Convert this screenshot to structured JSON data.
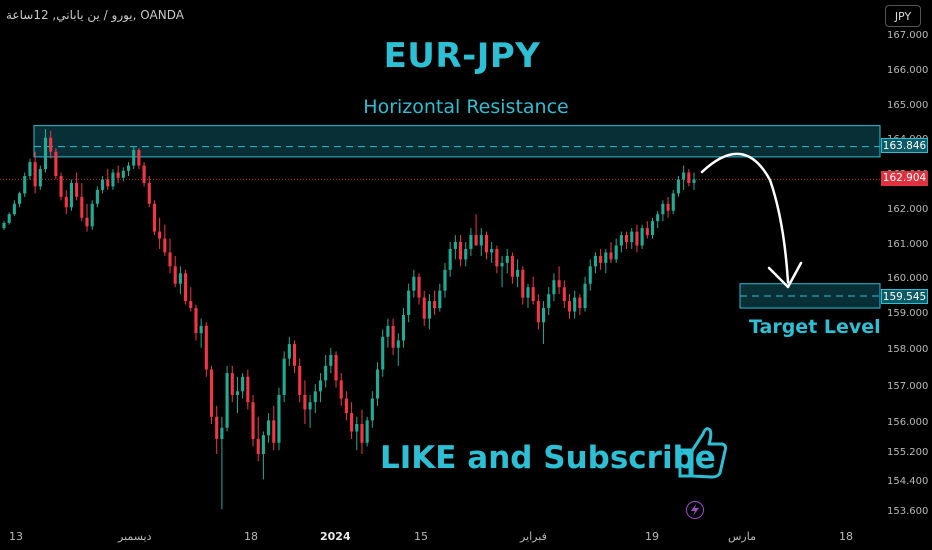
{
  "symbol_line": "يورو / ين ياباني, 12ساعة, OANDA",
  "title": "EUR-JPY",
  "subtitle": "Horizontal Resistance",
  "target_label": "Target Level",
  "cta": "LIKE and Subscribe",
  "currency_button": "JPY",
  "colors": {
    "accent": "#2dbfd4",
    "up": "#22ab94",
    "down": "#f23645",
    "current": "#e0313f"
  },
  "icons": [
    "thumbs-up-icon",
    "lightning-icon"
  ],
  "price_tags": {
    "resistance": "163.846",
    "current": "162.904",
    "target": "159.545"
  },
  "y_axis_labels": [
    "167.000",
    "166.000",
    "165.000",
    "164.000",
    "163.000",
    "162.000",
    "161.000",
    "160.000",
    "159.000",
    "158.000",
    "157.000",
    "156.000",
    "155.200",
    "154.400",
    "153.600"
  ],
  "x_axis_labels": [
    {
      "text": "13",
      "bold": false
    },
    {
      "text": "ديسمبر",
      "bold": false
    },
    {
      "text": "18",
      "bold": false
    },
    {
      "text": "2024",
      "bold": true
    },
    {
      "text": "15",
      "bold": false
    },
    {
      "text": "فبراير",
      "bold": false
    },
    {
      "text": "19",
      "bold": false
    },
    {
      "text": "مارس",
      "bold": false
    },
    {
      "text": "18",
      "bold": false
    }
  ],
  "chart_data": {
    "type": "candlestick",
    "resistance_zone": [
      163.55,
      164.45
    ],
    "resistance_line": 163.846,
    "current_price": 162.904,
    "target_zone": [
      159.2,
      159.9
    ],
    "target_line": 159.545,
    "candles": [
      [
        161.5,
        161.7,
        161.45,
        161.65
      ],
      [
        161.65,
        161.95,
        161.6,
        161.9
      ],
      [
        161.9,
        162.3,
        161.85,
        162.2
      ],
      [
        162.2,
        162.55,
        162.1,
        162.5
      ],
      [
        162.5,
        163.1,
        162.4,
        163.0
      ],
      [
        163.0,
        163.5,
        162.9,
        163.4
      ],
      [
        163.4,
        163.7,
        162.5,
        162.7
      ],
      [
        162.7,
        163.3,
        162.6,
        163.2
      ],
      [
        163.2,
        164.35,
        163.1,
        164.1
      ],
      [
        164.1,
        164.3,
        163.5,
        163.7
      ],
      [
        163.7,
        163.8,
        162.9,
        163.0
      ],
      [
        163.0,
        163.1,
        162.3,
        162.4
      ],
      [
        162.4,
        162.6,
        161.9,
        162.1
      ],
      [
        162.1,
        162.9,
        162.0,
        162.8
      ],
      [
        162.8,
        163.1,
        162.3,
        162.4
      ],
      [
        162.4,
        162.8,
        161.7,
        161.8
      ],
      [
        161.8,
        162.2,
        161.4,
        161.55
      ],
      [
        161.55,
        162.3,
        161.45,
        162.2
      ],
      [
        162.2,
        162.7,
        162.1,
        162.6
      ],
      [
        162.6,
        163.0,
        162.5,
        162.9
      ],
      [
        162.9,
        163.2,
        162.6,
        162.7
      ],
      [
        162.7,
        163.2,
        162.6,
        163.1
      ],
      [
        163.1,
        163.3,
        162.8,
        162.95
      ],
      [
        162.95,
        163.25,
        162.85,
        163.15
      ],
      [
        163.15,
        163.4,
        163.0,
        163.3
      ],
      [
        163.3,
        163.85,
        163.2,
        163.75
      ],
      [
        163.75,
        163.8,
        163.2,
        163.3
      ],
      [
        163.3,
        163.4,
        162.7,
        162.8
      ],
      [
        162.8,
        163.0,
        162.1,
        162.2
      ],
      [
        162.2,
        162.3,
        161.3,
        161.4
      ],
      [
        161.4,
        161.8,
        160.9,
        161.2
      ],
      [
        161.2,
        161.6,
        160.7,
        160.8
      ],
      [
        160.8,
        161.2,
        160.2,
        160.4
      ],
      [
        160.4,
        160.7,
        159.8,
        159.9
      ],
      [
        159.9,
        160.4,
        159.6,
        160.2
      ],
      [
        160.2,
        160.3,
        159.3,
        159.4
      ],
      [
        159.4,
        159.8,
        159.1,
        159.2
      ],
      [
        159.2,
        159.3,
        158.3,
        158.5
      ],
      [
        158.5,
        158.9,
        158.1,
        158.7
      ],
      [
        158.7,
        158.8,
        157.3,
        157.5
      ],
      [
        157.5,
        157.6,
        156.0,
        156.2
      ],
      [
        156.2,
        156.5,
        155.2,
        155.6
      ],
      [
        155.6,
        156.2,
        153.7,
        155.9
      ],
      [
        155.9,
        157.6,
        155.8,
        157.4
      ],
      [
        157.4,
        157.6,
        156.6,
        156.8
      ],
      [
        156.8,
        157.3,
        156.3,
        156.9
      ],
      [
        156.9,
        157.4,
        156.7,
        157.3
      ],
      [
        157.3,
        157.5,
        156.4,
        156.6
      ],
      [
        156.6,
        156.8,
        155.4,
        155.6
      ],
      [
        155.6,
        156.2,
        155.0,
        155.2
      ],
      [
        155.2,
        155.8,
        154.5,
        155.7
      ],
      [
        155.7,
        156.3,
        155.5,
        156.1
      ],
      [
        156.1,
        156.5,
        155.3,
        155.5
      ],
      [
        155.5,
        157.0,
        155.3,
        156.8
      ],
      [
        156.8,
        158.0,
        156.6,
        157.8
      ],
      [
        157.8,
        158.4,
        157.6,
        158.2
      ],
      [
        158.2,
        158.3,
        157.4,
        157.6
      ],
      [
        157.6,
        157.8,
        156.6,
        156.8
      ],
      [
        156.8,
        157.2,
        156.0,
        156.4
      ],
      [
        156.4,
        156.8,
        155.9,
        156.6
      ],
      [
        156.6,
        157.1,
        156.3,
        156.9
      ],
      [
        156.9,
        157.4,
        156.6,
        157.2
      ],
      [
        157.2,
        157.9,
        157.0,
        157.6
      ],
      [
        157.6,
        158.1,
        157.4,
        157.9
      ],
      [
        157.9,
        158.0,
        157.0,
        157.2
      ],
      [
        157.2,
        157.4,
        156.5,
        156.7
      ],
      [
        156.7,
        156.9,
        156.1,
        156.3
      ],
      [
        156.3,
        156.6,
        155.6,
        155.8
      ],
      [
        155.8,
        156.2,
        155.3,
        156.0
      ],
      [
        156.0,
        156.4,
        155.2,
        155.5
      ],
      [
        155.5,
        156.2,
        155.4,
        156.1
      ],
      [
        156.1,
        156.9,
        155.9,
        156.7
      ],
      [
        156.7,
        157.7,
        156.5,
        157.5
      ],
      [
        157.5,
        158.6,
        157.3,
        158.4
      ],
      [
        158.4,
        158.9,
        158.1,
        158.7
      ],
      [
        158.7,
        158.9,
        157.9,
        158.1
      ],
      [
        158.1,
        158.5,
        157.6,
        158.3
      ],
      [
        158.3,
        159.2,
        158.1,
        159.0
      ],
      [
        159.0,
        159.9,
        158.8,
        159.7
      ],
      [
        159.7,
        160.3,
        159.5,
        160.1
      ],
      [
        160.1,
        160.2,
        159.3,
        159.5
      ],
      [
        159.5,
        159.7,
        158.7,
        158.9
      ],
      [
        158.9,
        159.6,
        158.6,
        159.4
      ],
      [
        159.4,
        159.7,
        159.0,
        159.2
      ],
      [
        159.2,
        159.9,
        159.1,
        159.7
      ],
      [
        159.7,
        160.5,
        159.5,
        160.3
      ],
      [
        160.3,
        161.1,
        160.1,
        160.9
      ],
      [
        160.9,
        161.3,
        160.6,
        161.1
      ],
      [
        161.1,
        161.3,
        160.4,
        160.6
      ],
      [
        160.6,
        161.1,
        160.4,
        160.9
      ],
      [
        160.9,
        161.5,
        160.7,
        161.3
      ],
      [
        161.3,
        161.9,
        161.1,
        161.0
      ],
      [
        161.0,
        161.5,
        160.7,
        161.3
      ],
      [
        161.3,
        161.4,
        160.6,
        160.8
      ],
      [
        160.8,
        161.1,
        160.5,
        160.9
      ],
      [
        160.9,
        161.0,
        160.2,
        160.4
      ],
      [
        160.4,
        160.7,
        159.8,
        160.5
      ],
      [
        160.5,
        160.9,
        160.2,
        160.7
      ],
      [
        160.7,
        160.8,
        159.9,
        160.1
      ],
      [
        160.1,
        160.6,
        159.8,
        160.3
      ],
      [
        160.3,
        160.4,
        159.3,
        159.5
      ],
      [
        159.5,
        159.9,
        159.2,
        159.8
      ],
      [
        159.8,
        160.1,
        159.3,
        159.4
      ],
      [
        159.4,
        159.6,
        158.6,
        158.8
      ],
      [
        158.8,
        159.4,
        158.2,
        159.2
      ],
      [
        159.2,
        159.8,
        159.0,
        159.6
      ],
      [
        159.6,
        160.2,
        159.4,
        160.0
      ],
      [
        160.0,
        160.4,
        159.6,
        159.8
      ],
      [
        159.8,
        160.0,
        159.2,
        159.4
      ],
      [
        159.4,
        159.6,
        158.9,
        159.1
      ],
      [
        159.1,
        159.7,
        158.9,
        159.5
      ],
      [
        159.5,
        159.6,
        159.0,
        159.2
      ],
      [
        159.2,
        160.1,
        159.1,
        159.9
      ],
      [
        159.9,
        160.6,
        159.7,
        160.4
      ],
      [
        160.4,
        160.8,
        160.2,
        160.7
      ],
      [
        160.7,
        160.9,
        160.3,
        160.5
      ],
      [
        160.5,
        160.9,
        160.2,
        160.8
      ],
      [
        160.8,
        161.1,
        160.5,
        160.6
      ],
      [
        160.6,
        161.2,
        160.5,
        161.0
      ],
      [
        161.0,
        161.4,
        160.8,
        161.3
      ],
      [
        161.3,
        161.4,
        160.9,
        161.1
      ],
      [
        161.1,
        161.5,
        160.9,
        161.4
      ],
      [
        161.4,
        161.6,
        160.8,
        161.0
      ],
      [
        161.0,
        161.6,
        160.9,
        161.5
      ],
      [
        161.5,
        161.7,
        161.2,
        161.3
      ],
      [
        161.3,
        161.8,
        161.2,
        161.7
      ],
      [
        161.7,
        162.0,
        161.5,
        161.9
      ],
      [
        161.9,
        162.3,
        161.7,
        162.2
      ],
      [
        162.2,
        162.4,
        161.8,
        162.0
      ],
      [
        162.0,
        162.6,
        161.9,
        162.5
      ],
      [
        162.5,
        163.0,
        162.4,
        162.9
      ],
      [
        162.9,
        163.3,
        162.6,
        163.1
      ],
      [
        163.1,
        163.2,
        162.7,
        162.8
      ],
      [
        162.8,
        163.1,
        162.6,
        162.9
      ]
    ]
  }
}
